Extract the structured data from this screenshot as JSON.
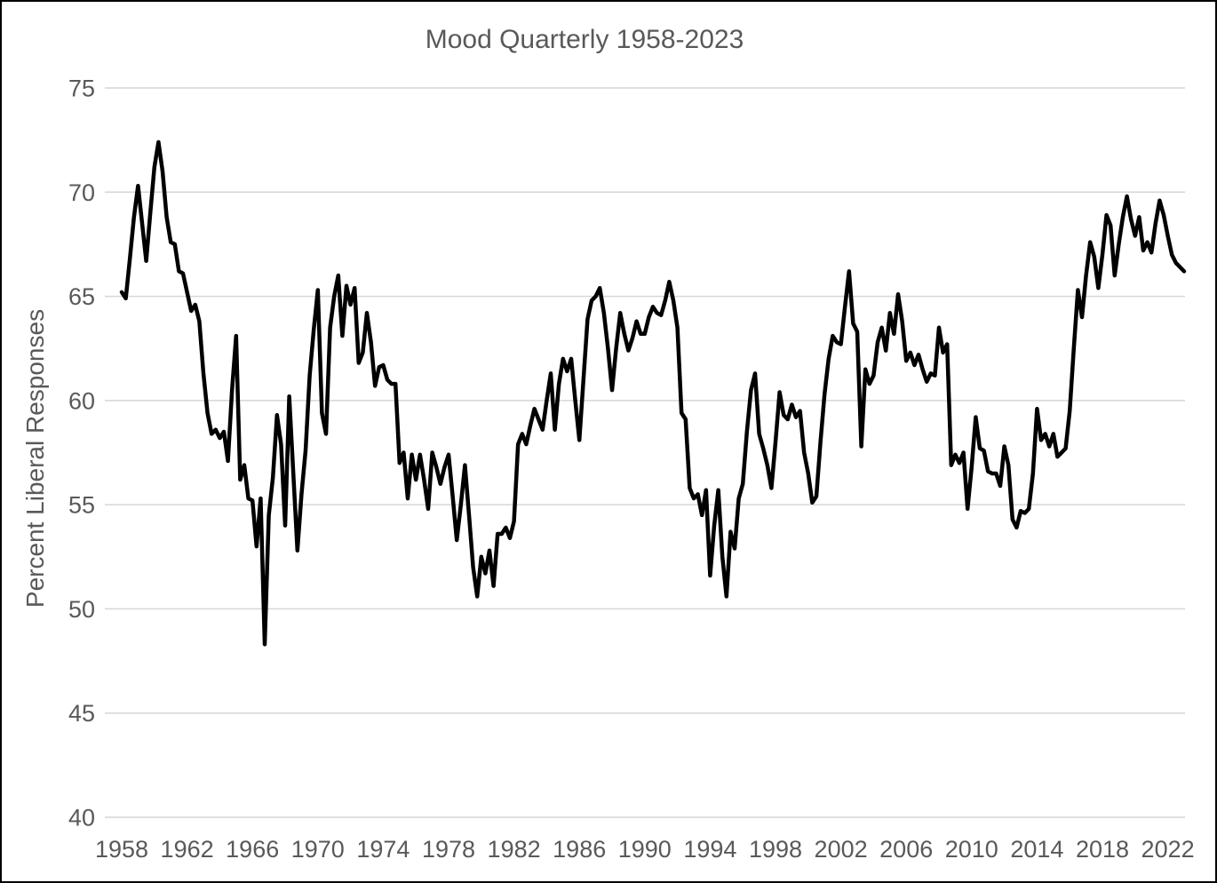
{
  "chart_data": {
    "type": "line",
    "title": "Mood Quarterly 1958-2023",
    "xlabel": "",
    "ylabel": "Percent Liberal Responses",
    "ylim": [
      40,
      75
    ],
    "yticks": [
      40,
      45,
      50,
      55,
      60,
      65,
      70,
      75
    ],
    "xticks": [
      1958,
      1962,
      1966,
      1970,
      1974,
      1978,
      1982,
      1986,
      1990,
      1994,
      1998,
      2002,
      2006,
      2010,
      2014,
      2018,
      2022
    ],
    "x_start_year": 1958,
    "x_start_quarter": 1,
    "x_end_year": 2023,
    "x_end_quarter": 1,
    "frequency": "quarterly",
    "grid": "horizontal",
    "legend": false,
    "line_color": "#000000",
    "grid_color": "#d6d6d6",
    "text_color": "#595959",
    "series": [
      {
        "name": "Percent Liberal Responses",
        "values": [
          65.2,
          64.9,
          66.8,
          68.8,
          70.3,
          68.5,
          66.7,
          69.0,
          71.2,
          72.4,
          71.0,
          68.8,
          67.6,
          67.5,
          66.2,
          66.1,
          65.2,
          64.3,
          64.6,
          63.8,
          61.3,
          59.4,
          58.4,
          58.6,
          58.2,
          58.5,
          57.1,
          60.5,
          63.1,
          56.2,
          56.9,
          55.3,
          55.2,
          53.0,
          55.3,
          48.3,
          54.5,
          56.3,
          59.3,
          57.9,
          54.0,
          60.2,
          56.5,
          52.8,
          55.5,
          57.6,
          61.2,
          63.4,
          65.3,
          59.4,
          58.4,
          63.5,
          65.0,
          66.0,
          63.1,
          65.5,
          64.6,
          65.4,
          61.8,
          62.3,
          64.2,
          62.8,
          60.7,
          61.6,
          61.7,
          61.0,
          60.8,
          60.8,
          57.0,
          57.5,
          55.3,
          57.4,
          56.2,
          57.4,
          56.2,
          54.8,
          57.5,
          56.8,
          56.0,
          56.8,
          57.4,
          55.4,
          53.3,
          55.0,
          56.9,
          54.5,
          52.0,
          50.6,
          52.5,
          51.7,
          52.8,
          51.1,
          53.6,
          53.6,
          53.9,
          53.4,
          54.2,
          57.9,
          58.4,
          57.9,
          58.8,
          59.6,
          59.1,
          58.6,
          60.0,
          61.3,
          58.6,
          60.8,
          62.0,
          61.4,
          62.0,
          60.0,
          58.1,
          61.0,
          63.9,
          64.8,
          65.0,
          65.4,
          64.2,
          62.5,
          60.5,
          62.5,
          64.2,
          63.2,
          62.4,
          63.0,
          63.8,
          63.2,
          63.2,
          64.0,
          64.5,
          64.2,
          64.1,
          64.8,
          65.7,
          64.8,
          63.5,
          59.4,
          59.1,
          55.8,
          55.3,
          55.5,
          54.5,
          55.7,
          51.6,
          54.0,
          55.7,
          52.5,
          50.6,
          53.7,
          52.9,
          55.3,
          56.0,
          58.5,
          60.5,
          61.3,
          58.4,
          57.7,
          56.9,
          55.8,
          58.0,
          60.4,
          59.3,
          59.1,
          59.8,
          59.2,
          59.5,
          57.5,
          56.5,
          55.1,
          55.4,
          58.0,
          60.3,
          62.0,
          63.1,
          62.8,
          62.7,
          64.5,
          66.2,
          63.7,
          63.3,
          57.8,
          61.5,
          60.8,
          61.2,
          62.8,
          63.5,
          62.4,
          64.2,
          63.2,
          65.1,
          63.8,
          61.9,
          62.3,
          61.7,
          62.2,
          61.5,
          60.9,
          61.3,
          61.2,
          63.5,
          62.3,
          62.7,
          56.9,
          57.4,
          57.0,
          57.5,
          54.8,
          56.8,
          59.2,
          57.7,
          57.6,
          56.6,
          56.5,
          56.5,
          55.9,
          57.8,
          56.9,
          54.3,
          53.9,
          54.7,
          54.6,
          54.8,
          56.5,
          59.6,
          58.1,
          58.4,
          57.8,
          58.4,
          57.3,
          57.5,
          57.7,
          59.5,
          62.5,
          65.3,
          64.0,
          66.0,
          67.6,
          66.9,
          65.4,
          67.0,
          68.9,
          68.4,
          66.0,
          67.5,
          68.8,
          69.8,
          68.7,
          67.9,
          68.8,
          67.2,
          67.6,
          67.1,
          68.5,
          69.6,
          68.9,
          67.9,
          67.0,
          66.6,
          66.4,
          66.2
        ]
      }
    ]
  }
}
